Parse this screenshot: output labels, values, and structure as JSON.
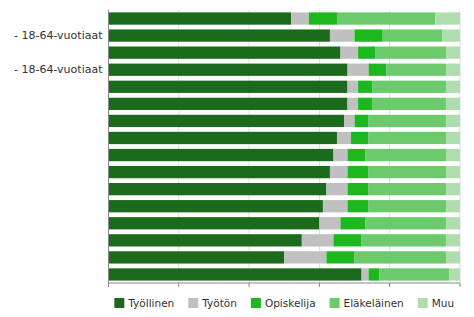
{
  "chart_data": {
    "type": "bar",
    "orientation": "horizontal",
    "stacked": true,
    "categories": [
      null,
      "- 18-64-vuotiaat",
      null,
      "- 18-64-vuotiaat",
      null,
      null,
      null,
      null,
      null,
      null,
      null,
      null,
      null,
      null,
      null,
      null
    ],
    "series": [
      {
        "name": "Työllinen",
        "color": "#1c6b1c",
        "values": [
          52,
          63,
          66,
          68,
          68,
          68,
          67,
          65,
          64,
          63,
          62,
          61,
          60,
          55,
          50,
          72
        ]
      },
      {
        "name": "Työtön",
        "color": "#c0c0c0",
        "values": [
          5,
          7,
          5,
          6,
          3,
          3,
          3,
          4,
          4,
          5,
          6,
          7,
          6,
          9,
          12,
          2
        ]
      },
      {
        "name": "Opiskelija",
        "color": "#1db81d",
        "values": [
          8,
          8,
          5,
          5,
          4,
          4,
          4,
          5,
          5,
          6,
          6,
          6,
          7,
          8,
          8,
          3
        ]
      },
      {
        "name": "Eläkeläinen",
        "color": "#6cc96c",
        "values": [
          28,
          17,
          20,
          17,
          21,
          21,
          22,
          22,
          23,
          22,
          22,
          22,
          23,
          24,
          26,
          20
        ]
      },
      {
        "name": "Muu",
        "color": "#b0ddb0",
        "values": [
          7,
          5,
          4,
          4,
          4,
          4,
          4,
          4,
          4,
          4,
          4,
          4,
          4,
          4,
          4,
          3
        ]
      }
    ],
    "xlim": [
      0,
      100
    ],
    "xticks": [
      0,
      20,
      40,
      60,
      80,
      100
    ],
    "grid": true,
    "legend": "bottom",
    "tick_labels": "y"
  }
}
